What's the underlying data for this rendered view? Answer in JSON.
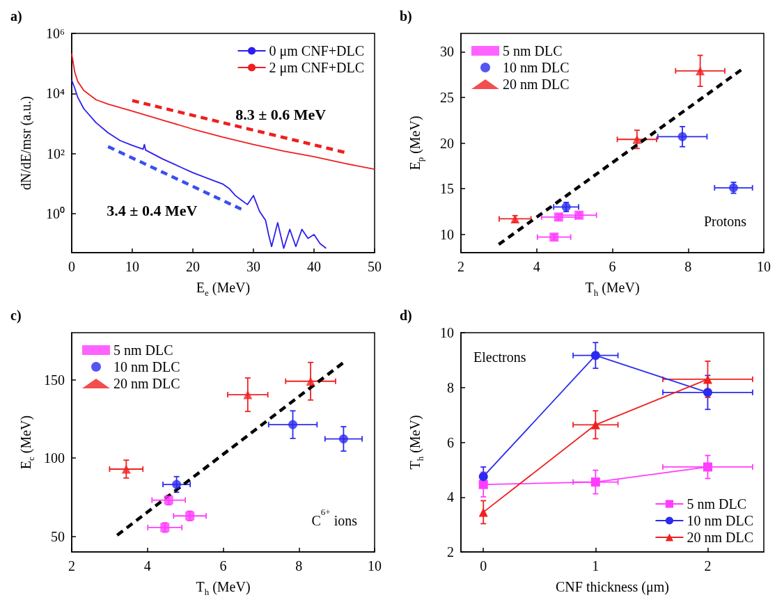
{
  "chart_data": [
    {
      "type": "line",
      "title": "a)",
      "xlabel": "E$_{e}$ (MeV)",
      "ylabel": "dN/dE/msr (a.u.)",
      "log": "y",
      "xlim": [
        0,
        50
      ],
      "xticks": [
        0,
        10,
        20,
        30,
        40,
        50
      ],
      "ylim": [
        0.05,
        1000000
      ],
      "yticks": [
        {
          "value": 1,
          "label": "10⁰"
        },
        {
          "value": 100,
          "label": "10²"
        },
        {
          "value": 10000,
          "label": "10⁴"
        },
        {
          "value": 1000000,
          "label": "10⁶"
        }
      ],
      "legend": "top right",
      "marker": "none",
      "line_style": "solid",
      "grid": false,
      "series": [
        {
          "name": "0 μm CNF+DLC",
          "color": "#2b1ef0",
          "x": [
            0,
            0.5,
            1,
            2,
            4,
            6,
            8,
            10,
            11.8,
            12,
            12.2,
            15,
            18,
            20,
            23,
            25,
            26,
            27,
            28,
            29,
            30,
            31,
            32,
            32.5,
            33,
            34,
            35,
            36,
            37,
            38,
            39,
            40,
            41,
            42
          ],
          "values": [
            28000,
            15000,
            7400,
            3100,
            1070,
            490,
            270,
            186,
            140,
            200,
            130,
            66,
            35,
            23,
            13.5,
            9.5,
            6.8,
            4,
            2.8,
            2,
            4,
            1.2,
            0.6,
            0.2,
            0.08,
            0.5,
            0.07,
            0.3,
            0.08,
            0.3,
            0.15,
            0.2,
            0.1,
            0.07
          ]
        },
        {
          "name": "2 μm CNF+DLC",
          "color": "#f01e1e",
          "x": [
            0,
            0.5,
            1,
            2,
            4,
            6,
            10,
            15,
            20,
            25,
            30,
            35,
            40,
            45,
            50
          ],
          "values": [
            210000,
            51000,
            25000,
            12600,
            6200,
            4400,
            2600,
            1300,
            650,
            350,
            200,
            120,
            78,
            47,
            30
          ]
        },
        {
          "color": "#f01e1e",
          "line_style": "dashed",
          "x": [
            10,
            45
          ],
          "values": [
            5800,
            110
          ]
        },
        {
          "color": "#3a4ff0",
          "line_style": "dashed",
          "x": [
            6,
            28
          ],
          "values": [
            170,
            1.4
          ]
        }
      ],
      "annotations": [
        "8.3 ± 0.6 MeV",
        "3.4 ± 0.4 MeV"
      ]
    },
    {
      "type": "scatter",
      "title": "b)",
      "xlabel": "T$_{h}$ (MeV)",
      "ylabel": "E$_{p}$ (MeV)",
      "xlim": [
        2,
        10
      ],
      "xticks": [
        2,
        4,
        6,
        8,
        10
      ],
      "ylim": [
        8,
        32
      ],
      "yticks": [
        10,
        15,
        20,
        25,
        30
      ],
      "legend": "top left",
      "grid": false,
      "series": [
        {
          "name": "5 nm DLC",
          "color": "#ff3cff",
          "marker": "square",
          "x": [
            4.46,
            4.58,
            5.12
          ],
          "values": [
            9.7,
            11.9,
            12.1
          ],
          "xerrors": [
            0.44,
            0.45,
            0.46
          ],
          "errors": [
            0.3,
            0.3,
            0.3
          ]
        },
        {
          "name": "10 nm DLC",
          "color": "#2b2bf0",
          "marker": "circle",
          "x": [
            4.78,
            7.85,
            9.2
          ],
          "values": [
            13,
            20.7,
            15.1
          ],
          "xerrors": [
            0.33,
            0.65,
            0.5
          ],
          "errors": [
            0.5,
            1.1,
            0.6
          ]
        },
        {
          "name": "20 nm DLC",
          "color": "#f02020",
          "marker": "triangle",
          "x": [
            3.43,
            6.65,
            8.32
          ],
          "values": [
            11.7,
            20.4,
            27.9
          ],
          "xerrors": [
            0.42,
            0.52,
            0.65
          ],
          "errors": [
            0.35,
            1,
            1.7
          ]
        },
        {
          "type": "line",
          "color": "#000000",
          "line_style": "dashed",
          "marker": "none",
          "x": [
            3,
            9.4
          ],
          "values": [
            8.9,
            28
          ]
        }
      ],
      "annotations": [
        "Protons"
      ]
    },
    {
      "type": "scatter",
      "title": "c)",
      "xlabel": "T$_{h}$ (MeV)",
      "ylabel": "E$_{c}$ (MeV)",
      "xlim": [
        2,
        10
      ],
      "xticks": [
        2,
        4,
        6,
        8,
        10
      ],
      "ylim": [
        40,
        180
      ],
      "yticks": [
        50,
        100,
        150
      ],
      "legend": "top left",
      "grid": false,
      "series": [
        {
          "name": "5 nm DLC",
          "color": "#ff3cff",
          "marker": "square",
          "x": [
            4.46,
            4.56,
            5.12
          ],
          "values": [
            55.6,
            73.1,
            63
          ],
          "xerrors": [
            0.45,
            0.44,
            0.43
          ],
          "errors": [
            3,
            3,
            3
          ]
        },
        {
          "name": "10 nm DLC",
          "color": "#2b2bf0",
          "marker": "circle",
          "x": [
            4.77,
            7.84,
            9.18
          ],
          "values": [
            83.1,
            121.3,
            112.2
          ],
          "xerrors": [
            0.36,
            0.64,
            0.49
          ],
          "errors": [
            5,
            8.8,
            7.8
          ]
        },
        {
          "name": "20 nm DLC",
          "color": "#f02020",
          "marker": "triangle",
          "x": [
            3.44,
            6.65,
            8.31
          ],
          "values": [
            92.9,
            140.4,
            149
          ],
          "xerrors": [
            0.44,
            0.53,
            0.66
          ],
          "errors": [
            5.7,
            10.7,
            12
          ]
        },
        {
          "type": "line",
          "color": "#000000",
          "line_style": "dashed",
          "marker": "none",
          "x": [
            3.2,
            9.16
          ],
          "values": [
            50.7,
            160.6
          ]
        }
      ],
      "annotations": [
        "C$^{6+}$ ions"
      ]
    },
    {
      "type": "line",
      "title": "d)",
      "xlabel": "CNF thickness (μm)",
      "ylabel": "T$_{h}$ (MeV)",
      "xlim": [
        -0.2,
        2.5
      ],
      "xticks": [
        0,
        1,
        2
      ],
      "ylim": [
        2,
        10
      ],
      "yticks": [
        2,
        4,
        6,
        8,
        10
      ],
      "legend": "bottom right",
      "line_style": "solid",
      "grid": false,
      "x": [
        0,
        1,
        2
      ],
      "series": [
        {
          "name": "5 nm DLC",
          "color": "#ff3cff",
          "marker": "square",
          "values": [
            4.46,
            4.55,
            5.1
          ],
          "xerrors": [
            null,
            0.2,
            0.4
          ],
          "errors": [
            0.45,
            0.43,
            0.42
          ]
        },
        {
          "name": "10 nm DLC",
          "color": "#2b2bf0",
          "marker": "circle",
          "values": [
            4.75,
            9.17,
            7.82
          ],
          "xerrors": [
            null,
            0.2,
            0.4
          ],
          "errors": [
            0.35,
            0.47,
            0.62
          ]
        },
        {
          "name": "20 nm DLC",
          "color": "#f02020",
          "marker": "triangle",
          "values": [
            3.45,
            6.64,
            8.3
          ],
          "xerrors": [
            null,
            0.2,
            0.4
          ],
          "errors": [
            0.42,
            0.51,
            0.66
          ]
        }
      ],
      "annotations": [
        "Electrons"
      ]
    }
  ]
}
